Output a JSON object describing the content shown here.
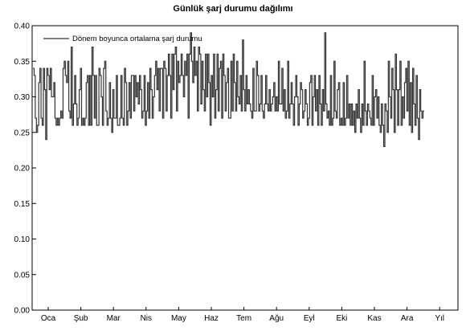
{
  "chart_data": {
    "type": "line",
    "title": "Günlük şarj durumu dağılımı",
    "xlabel": "",
    "ylabel": "",
    "ylim": [
      0,
      0.4
    ],
    "yticks": [
      "0.00",
      "0.05",
      "0.10",
      "0.15",
      "0.20",
      "0.25",
      "0.30",
      "0.35",
      "0.40"
    ],
    "xticks": [
      "Oca",
      "Şub",
      "Mar",
      "Nis",
      "May",
      "Haz",
      "Tem",
      "Ağu",
      "Eyl",
      "Eki",
      "Kas",
      "Ara",
      "Yıl"
    ],
    "grid": false,
    "legend_position": "top-left",
    "series": [
      {
        "name": "Dönem boyunca ortalama şarj durumu",
        "color": "#333333",
        "values": [
          0.34,
          0.33,
          0.27,
          0.25,
          0.26,
          0.32,
          0.34,
          0.27,
          0.26,
          0.34,
          0.31,
          0.24,
          0.34,
          0.33,
          0.31,
          0.34,
          0.3,
          0.3,
          0.32,
          0.27,
          0.26,
          0.27,
          0.26,
          0.27,
          0.28,
          0.27,
          0.34,
          0.35,
          0.33,
          0.32,
          0.35,
          0.28,
          0.27,
          0.37,
          0.26,
          0.29,
          0.33,
          0.29,
          0.26,
          0.27,
          0.31,
          0.34,
          0.26,
          0.27,
          0.26,
          0.27,
          0.32,
          0.33,
          0.26,
          0.33,
          0.26,
          0.37,
          0.33,
          0.27,
          0.33,
          0.26,
          0.26,
          0.34,
          0.33,
          0.3,
          0.26,
          0.34,
          0.35,
          0.28,
          0.26,
          0.27,
          0.32,
          0.27,
          0.25,
          0.31,
          0.27,
          0.27,
          0.33,
          0.26,
          0.26,
          0.27,
          0.33,
          0.27,
          0.26,
          0.34,
          0.32,
          0.26,
          0.28,
          0.32,
          0.27,
          0.33,
          0.33,
          0.28,
          0.33,
          0.3,
          0.32,
          0.29,
          0.33,
          0.31,
          0.27,
          0.28,
          0.33,
          0.26,
          0.28,
          0.32,
          0.27,
          0.34,
          0.31,
          0.27,
          0.3,
          0.33,
          0.35,
          0.31,
          0.34,
          0.28,
          0.34,
          0.34,
          0.27,
          0.35,
          0.34,
          0.28,
          0.33,
          0.36,
          0.33,
          0.27,
          0.36,
          0.31,
          0.36,
          0.37,
          0.28,
          0.35,
          0.32,
          0.33,
          0.36,
          0.33,
          0.3,
          0.35,
          0.33,
          0.36,
          0.27,
          0.36,
          0.39,
          0.35,
          0.32,
          0.37,
          0.33,
          0.35,
          0.28,
          0.37,
          0.36,
          0.29,
          0.35,
          0.31,
          0.28,
          0.36,
          0.3,
          0.36,
          0.32,
          0.26,
          0.33,
          0.3,
          0.36,
          0.27,
          0.31,
          0.36,
          0.28,
          0.34,
          0.35,
          0.27,
          0.36,
          0.33,
          0.28,
          0.32,
          0.34,
          0.27,
          0.27,
          0.35,
          0.28,
          0.36,
          0.32,
          0.28,
          0.35,
          0.3,
          0.29,
          0.33,
          0.28,
          0.38,
          0.31,
          0.28,
          0.33,
          0.29,
          0.31,
          0.29,
          0.28,
          0.27,
          0.34,
          0.28,
          0.28,
          0.35,
          0.33,
          0.28,
          0.29,
          0.33,
          0.28,
          0.27,
          0.29,
          0.33,
          0.29,
          0.28,
          0.31,
          0.28,
          0.29,
          0.3,
          0.32,
          0.28,
          0.3,
          0.28,
          0.35,
          0.29,
          0.29,
          0.34,
          0.28,
          0.31,
          0.27,
          0.28,
          0.35,
          0.27,
          0.29,
          0.32,
          0.29,
          0.26,
          0.3,
          0.33,
          0.3,
          0.26,
          0.29,
          0.32,
          0.31,
          0.27,
          0.28,
          0.31,
          0.29,
          0.26,
          0.27,
          0.32,
          0.33,
          0.26,
          0.3,
          0.33,
          0.28,
          0.31,
          0.26,
          0.33,
          0.29,
          0.26,
          0.31,
          0.28,
          0.39,
          0.29,
          0.27,
          0.28,
          0.26,
          0.33,
          0.26,
          0.27,
          0.35,
          0.28,
          0.27,
          0.31,
          0.32,
          0.26,
          0.27,
          0.26,
          0.32,
          0.26,
          0.27,
          0.33,
          0.27,
          0.29,
          0.26,
          0.29,
          0.26,
          0.28,
          0.25,
          0.29,
          0.27,
          0.31,
          0.27,
          0.25,
          0.29,
          0.26,
          0.35,
          0.28,
          0.26,
          0.29,
          0.28,
          0.27,
          0.26,
          0.33,
          0.26,
          0.3,
          0.31,
          0.27,
          0.3,
          0.26,
          0.25,
          0.29,
          0.26,
          0.23,
          0.29,
          0.28,
          0.25,
          0.35,
          0.3,
          0.27,
          0.34,
          0.31,
          0.25,
          0.36,
          0.31,
          0.26,
          0.31,
          0.35,
          0.26,
          0.3,
          0.27,
          0.32,
          0.34,
          0.28,
          0.35,
          0.26,
          0.32,
          0.25,
          0.34,
          0.29,
          0.26,
          0.33,
          0.27,
          0.24,
          0.31,
          0.28,
          0.27,
          0.28
        ]
      }
    ]
  }
}
